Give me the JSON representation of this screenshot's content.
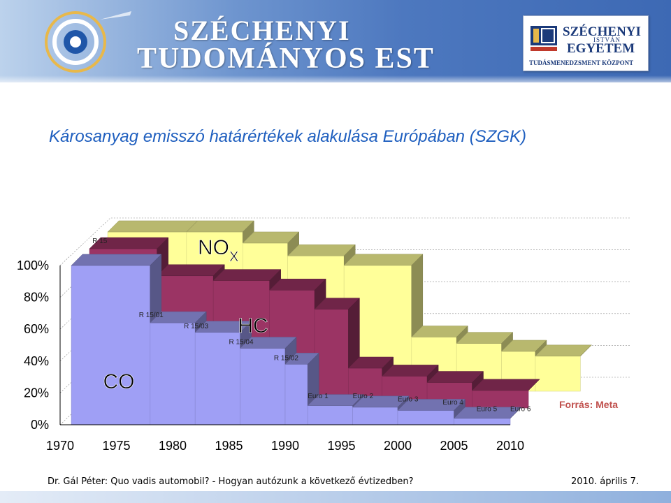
{
  "header": {
    "brand_line1": "SZÉCHENYI",
    "brand_line2": "TUDOMÁNYOS EST",
    "right_logo": {
      "line1": "SZÉCHENYI",
      "line2": "ISTVÁN",
      "line3": "EGYETEM",
      "line4": "TUDÁSMENEDZSMENT KÖZPONT"
    }
  },
  "slide_title": "Károsanyag emisszó határértékek alakulása Európában (SZGK)",
  "chart_data": {
    "type": "area",
    "subtype": "3d-step",
    "title": "",
    "xlabel": "",
    "ylabel": "",
    "x_ticks": [
      "1970",
      "1975",
      "1980",
      "1985",
      "1990",
      "1995",
      "2000",
      "2005",
      "2010"
    ],
    "y_ticks": [
      "0%",
      "20%",
      "40%",
      "60%",
      "80%",
      "100%"
    ],
    "ylim": [
      0,
      100
    ],
    "xlim": [
      1970,
      2010
    ],
    "grid": "horizontal",
    "series": [
      {
        "name": "CO",
        "color": "#9f9ff5",
        "points": [
          [
            1971,
            100
          ],
          [
            1978,
            64
          ],
          [
            1982,
            58
          ],
          [
            1986,
            48
          ],
          [
            1990,
            38
          ],
          [
            1992,
            12
          ],
          [
            1996,
            11
          ],
          [
            2000,
            9
          ],
          [
            2005,
            4
          ],
          [
            2010,
            4
          ]
        ]
      },
      {
        "name": "HC",
        "color": "#9b3464",
        "points": [
          [
            1971,
            100
          ],
          [
            1977,
            83
          ],
          [
            1982,
            80
          ],
          [
            1987,
            74
          ],
          [
            1991,
            62
          ],
          [
            1994,
            25
          ],
          [
            1997,
            20
          ],
          [
            2001,
            16
          ],
          [
            2005,
            11
          ],
          [
            2010,
            11
          ]
        ]
      },
      {
        "name": "NOX",
        "color": "#ffff99",
        "points": [
          [
            1971,
            100
          ],
          [
            1978,
            100
          ],
          [
            1983,
            93
          ],
          [
            1987,
            85
          ],
          [
            1992,
            79
          ],
          [
            1998,
            34
          ],
          [
            2002,
            30
          ],
          [
            2006,
            25
          ],
          [
            2009,
            22
          ],
          [
            2013,
            22
          ]
        ]
      }
    ],
    "series_labels": [
      {
        "text": "CO"
      },
      {
        "text": "HC"
      },
      {
        "text": "NO",
        "subscript": "X"
      }
    ],
    "regulation_labels": [
      "R 15",
      "R 15/01",
      "R 15/03",
      "R 15/04",
      "R 15/02",
      "Euro 1",
      "Euro 2",
      "Euro 3",
      "Euro 4",
      "Euro 5",
      "Euro 6"
    ],
    "source": "Forrás: Meta"
  },
  "footer": {
    "left": "Dr. Gál Péter: Quo vadis automobil? - Hogyan autózunk a következő évtizedben?",
    "right": "2010. április 7."
  }
}
